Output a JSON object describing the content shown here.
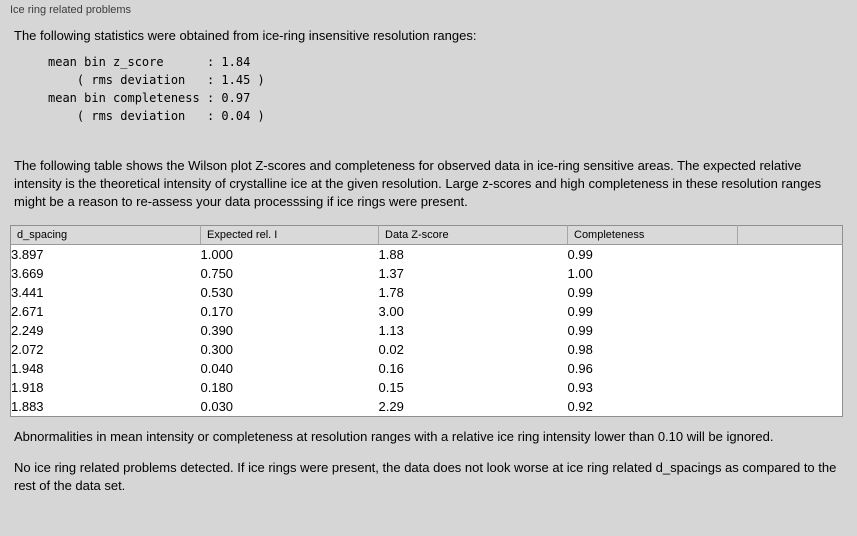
{
  "panel": {
    "title": "Ice ring related problems"
  },
  "intro": "The following statistics were obtained from ice-ring insensitive resolution ranges:",
  "stats": {
    "lines": [
      "mean bin z_score      : 1.84",
      "    ( rms deviation   : 1.45 )",
      "mean bin completeness : 0.97",
      "    ( rms deviation   : 0.04 )"
    ]
  },
  "description": "The following table shows the Wilson plot Z-scores and completeness for observed data in ice-ring sensitive areas. The expected relative intensity is the theoretical intensity of crystalline ice at the given resolution. Large z-scores and high completeness in these resolution ranges might be a reason to re-assess your data processsing if ice rings were present.",
  "table": {
    "headers": [
      "d_spacing",
      "Expected rel. I",
      "Data Z-score",
      "Completeness"
    ],
    "rows": [
      [
        "3.897",
        "1.000",
        "1.88",
        "0.99"
      ],
      [
        "3.669",
        "0.750",
        "1.37",
        "1.00"
      ],
      [
        "3.441",
        "0.530",
        "1.78",
        "0.99"
      ],
      [
        "2.671",
        "0.170",
        "3.00",
        "0.99"
      ],
      [
        "2.249",
        "0.390",
        "1.13",
        "0.99"
      ],
      [
        "2.072",
        "0.300",
        "0.02",
        "0.98"
      ],
      [
        "1.948",
        "0.040",
        "0.16",
        "0.96"
      ],
      [
        "1.918",
        "0.180",
        "0.15",
        "0.93"
      ],
      [
        "1.883",
        "0.030",
        "2.29",
        "0.92"
      ]
    ]
  },
  "footer": {
    "note1": "Abnormalities in mean intensity or completeness at resolution ranges with a relative ice ring intensity lower than 0.10 will be ignored.",
    "note2": "No ice ring related problems detected. If ice rings were present, the data does not look worse at ice ring related d_spacings as compared to the rest of the data set."
  },
  "colors": {
    "page_background": "#d6d6d6",
    "table_background": "#ffffff",
    "table_border": "#8f8f8f",
    "header_background": "#d9d9d9",
    "text": "#000000"
  }
}
